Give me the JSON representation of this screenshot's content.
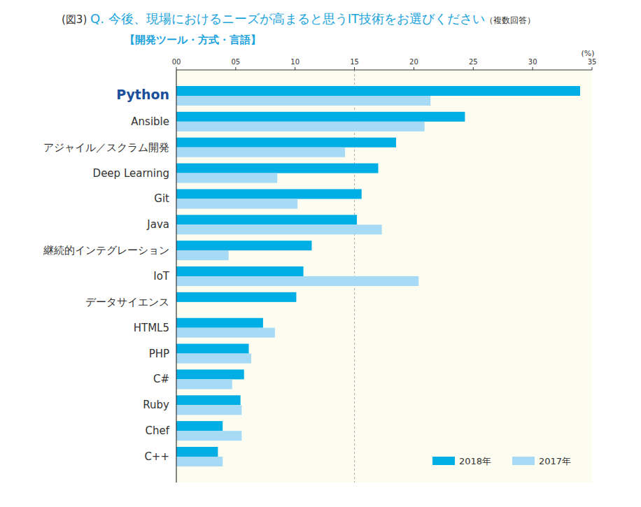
{
  "chart_data": {
    "type": "bar",
    "orientation": "horizontal",
    "title": "Q. 今後、現場におけるニーズが高まると思うIT技術をお選びください",
    "subtitle": "【開発ツール・方式・言語】",
    "annotations": [
      "(図3)",
      "（複数回答）"
    ],
    "xlabel": "(%)",
    "categories": [
      "Python",
      "Ansible",
      "アジャイル／スクラム開発",
      "Deep Learning",
      "Git",
      "Java",
      "継続的インテグレーション",
      "IoT",
      "データサイエンス",
      "HTML5",
      "PHP",
      "C#",
      "Ruby",
      "Chef",
      "C++"
    ],
    "series": [
      {
        "name": "2018年",
        "color": "#00aee6",
        "values": [
          34.0,
          24.3,
          18.5,
          17.0,
          15.6,
          15.2,
          11.4,
          10.7,
          10.1,
          7.3,
          6.1,
          5.7,
          5.4,
          3.9,
          3.5
        ]
      },
      {
        "name": "2017年",
        "color": "#a6daf5",
        "values": [
          21.4,
          20.9,
          14.2,
          8.5,
          10.2,
          17.3,
          4.4,
          20.4,
          null,
          8.3,
          6.3,
          4.7,
          5.5,
          5.5,
          3.9
        ]
      }
    ],
    "xlim": [
      0,
      35
    ],
    "xticks": [
      {
        "value": 0,
        "label": "00"
      },
      {
        "value": 5,
        "label": "05"
      },
      10,
      15,
      20,
      25,
      30,
      35
    ],
    "reference_lines": [
      15
    ],
    "grid": false,
    "legend": "bottom-right"
  }
}
